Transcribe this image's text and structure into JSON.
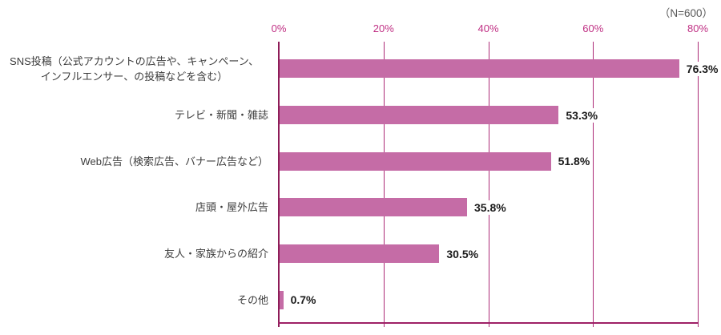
{
  "chart_data": {
    "type": "bar",
    "orientation": "horizontal",
    "annotation": "（N=600）",
    "x_axis": {
      "position": "top",
      "min": 0,
      "max": 80,
      "unit": "%",
      "ticks": [
        "0%",
        "20%",
        "40%",
        "60%",
        "80%"
      ],
      "grid": true
    },
    "bars": [
      {
        "label": "SNS投稿（公式アカウントの広告や、キャンペーン、\nインフルエンサー、の投稿などを含む）",
        "value": 76.3,
        "display": "76.3%"
      },
      {
        "label": "テレビ・新聞・雑誌",
        "value": 53.3,
        "display": "53.3%"
      },
      {
        "label": "Web広告（検索広告、バナー広告など）",
        "value": 51.8,
        "display": "51.8%"
      },
      {
        "label": "店頭・屋外広告",
        "value": 35.8,
        "display": "35.8%"
      },
      {
        "label": "友人・家族からの紹介",
        "value": 30.5,
        "display": "30.5%"
      },
      {
        "label": "その他",
        "value": 0.7,
        "display": "0.7%"
      }
    ],
    "colors": {
      "bar": "#c56ca6",
      "gridline": "#ac2b77",
      "axis_line": "#9e2066",
      "left_axis": "#8e1c58",
      "tick_label": "#c03084",
      "annotation_text": "#595959",
      "category_text": "#3d3d3d",
      "value_text": "#1a1a1a"
    }
  }
}
